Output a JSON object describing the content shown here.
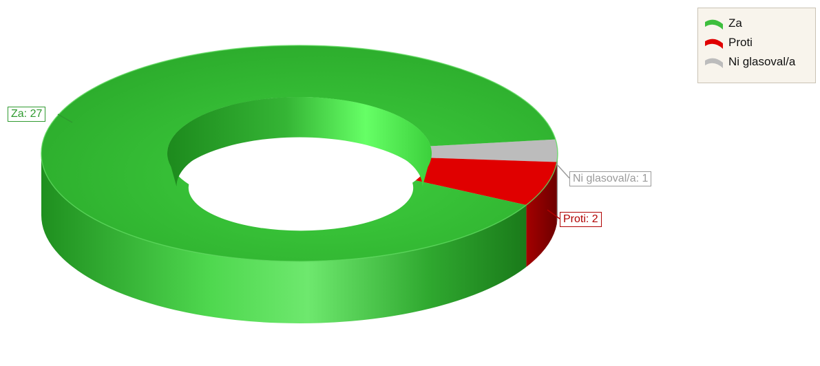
{
  "chart_data": {
    "type": "pie",
    "style": "3d-donut",
    "title": "",
    "legend_position": "top-right",
    "slices": [
      {
        "name": "Za",
        "value": 27,
        "label": "Za: 27",
        "color": "#3dbe3d",
        "label_color": "#2f9a2f"
      },
      {
        "name": "Proti",
        "value": 2,
        "label": "Proti: 2",
        "color": "#e00000",
        "label_color": "#b00000"
      },
      {
        "name": "Ni glasoval/a",
        "value": 1,
        "label": "Ni glasoval/a: 1",
        "color": "#bcbcbc",
        "label_color": "#9a9a9a"
      }
    ]
  }
}
